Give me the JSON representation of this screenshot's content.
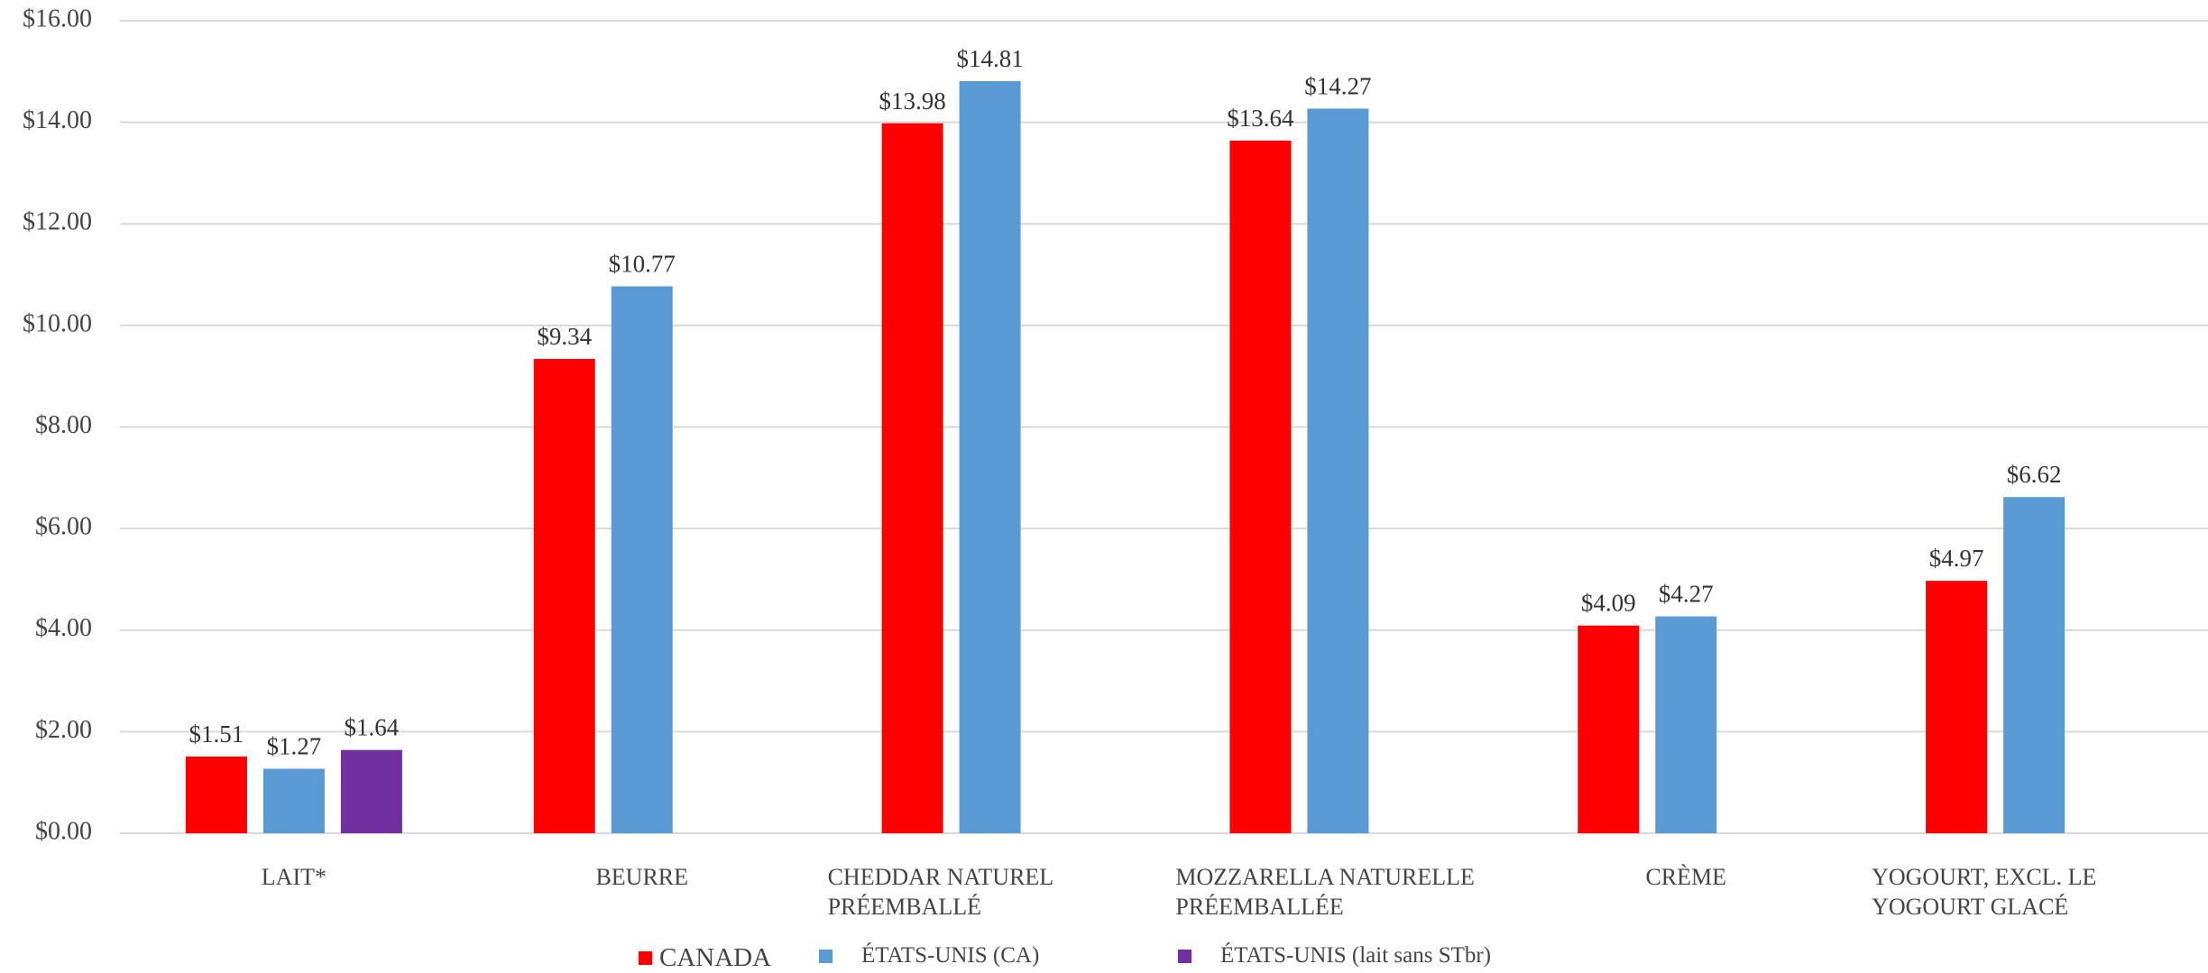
{
  "chart_data": {
    "type": "bar",
    "categories": [
      "LAIT*",
      "BEURRE",
      "CHEDDAR NATUREL PRÉEMBALLÉ",
      "MOZZARELLA NATURELLE PRÉEMBALLÉE",
      "CRÈME",
      "YOGOURT, EXCL. LE YOGOURT GLACÉ"
    ],
    "series": [
      {
        "name": "CANADA",
        "color": "#ff0000",
        "values": [
          1.51,
          9.34,
          13.98,
          13.64,
          4.09,
          4.97
        ],
        "value_labels": [
          "$1.51",
          "$9.34",
          "$13.98",
          "$13.64",
          "$4.09",
          "$4.97"
        ]
      },
      {
        "name": "ÉTATS-UNIS (CA)",
        "color": "#5b9bd5",
        "values": [
          1.27,
          10.77,
          14.81,
          14.27,
          4.27,
          6.62
        ],
        "value_labels": [
          "$1.27",
          "$10.77",
          "$14.81",
          "$14.27",
          "$4.27",
          "$6.62"
        ]
      },
      {
        "name": "ÉTATS-UNIS (lait sans STbr)",
        "color": "#7030a0",
        "values": [
          1.64,
          null,
          null,
          null,
          null,
          null
        ],
        "value_labels": [
          "$1.64",
          null,
          null,
          null,
          null,
          null
        ]
      }
    ],
    "ylim": [
      0,
      16
    ],
    "yticks": [
      {
        "value": 0,
        "label": "$0.00"
      },
      {
        "value": 2,
        "label": "$2.00"
      },
      {
        "value": 4,
        "label": "$4.00"
      },
      {
        "value": 6,
        "label": "$6.00"
      },
      {
        "value": 8,
        "label": "$8.00"
      },
      {
        "value": 10,
        "label": "$10.00"
      },
      {
        "value": 12,
        "label": "$12.00"
      },
      {
        "value": 14,
        "label": "$14.00"
      },
      {
        "value": 16,
        "label": "$16.00"
      }
    ],
    "grid": true,
    "legend": "bottom"
  }
}
